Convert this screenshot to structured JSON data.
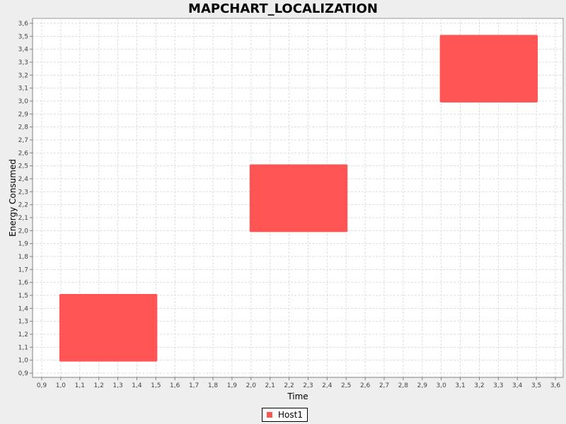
{
  "chart_data": {
    "type": "scatter",
    "title": "MAPCHART_LOCALIZATION",
    "xlabel": "Time",
    "ylabel": "Energy Consumed",
    "xlim": [
      0.9,
      3.6
    ],
    "ylim": [
      0.9,
      3.6
    ],
    "x_ticks": [
      "0,9",
      "1,0",
      "1,1",
      "1,2",
      "1,3",
      "1,4",
      "1,5",
      "1,6",
      "1,7",
      "1,8",
      "1,9",
      "2,0",
      "2,1",
      "2,2",
      "2,3",
      "2,4",
      "2,5",
      "2,6",
      "2,7",
      "2,8",
      "2,9",
      "3,0",
      "3,1",
      "3,2",
      "3,3",
      "3,4",
      "3,5",
      "3,6"
    ],
    "y_ticks": [
      "0,9",
      "1,0",
      "1,1",
      "1,2",
      "1,3",
      "1,4",
      "1,5",
      "1,6",
      "1,7",
      "1,8",
      "1,9",
      "2,0",
      "2,1",
      "2,2",
      "2,3",
      "2,4",
      "2,5",
      "2,6",
      "2,7",
      "2,8",
      "2,9",
      "3,0",
      "3,1",
      "3,2",
      "3,3",
      "3,4",
      "3,5",
      "3,6"
    ],
    "grid": true,
    "legend_position": "bottom",
    "series": [
      {
        "name": "Host1",
        "color": "#ff5555",
        "regions": [
          {
            "x": [
              1.0,
              1.5
            ],
            "y": [
              1.0,
              1.5
            ]
          },
          {
            "x": [
              2.0,
              2.5
            ],
            "y": [
              2.0,
              2.5
            ]
          },
          {
            "x": [
              3.0,
              3.5
            ],
            "y": [
              3.0,
              3.5
            ]
          }
        ]
      }
    ]
  }
}
